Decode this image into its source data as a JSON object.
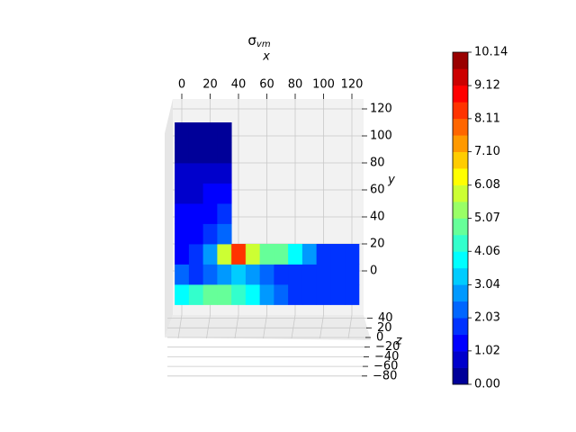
{
  "chart_data": {
    "type": "mesh-contour",
    "title": "σ",
    "title_subscript": "vm",
    "x_label": "x",
    "y_label": "y",
    "z_label": "z",
    "x_edges": [
      -5,
      5,
      15,
      25,
      35,
      45,
      55,
      65,
      75,
      85,
      95,
      105,
      115,
      125
    ],
    "y_edges": [
      -25,
      -10,
      5,
      20,
      35,
      50,
      65,
      80,
      95,
      110
    ],
    "values": [
      [
        4,
        4.5,
        5,
        5,
        4.5,
        4,
        3,
        2.5,
        2,
        2,
        2,
        2,
        2
      ],
      [
        2.5,
        2,
        2.5,
        3,
        3.5,
        3,
        2.5,
        2,
        2,
        2,
        2,
        2,
        2
      ],
      [
        1.5,
        2,
        3,
        6,
        8.5,
        6,
        5,
        5,
        4,
        3,
        2,
        2,
        2
      ],
      [
        1.5,
        1.5,
        2,
        2.5,
        null,
        null,
        null,
        null,
        null,
        null,
        null,
        null,
        null
      ],
      [
        1.5,
        1.5,
        1.5,
        2,
        null,
        null,
        null,
        null,
        null,
        null,
        null,
        null,
        null
      ],
      [
        1,
        1,
        1.5,
        1.5,
        null,
        null,
        null,
        null,
        null,
        null,
        null,
        null,
        null
      ],
      [
        1,
        1,
        1,
        1,
        null,
        null,
        null,
        null,
        null,
        null,
        null,
        null,
        null
      ],
      [
        0.5,
        0.5,
        0.5,
        0.5,
        null,
        null,
        null,
        null,
        null,
        null,
        null,
        null,
        null
      ],
      [
        0.3,
        0.3,
        0.3,
        0.3,
        null,
        null,
        null,
        null,
        null,
        null,
        null,
        null,
        null
      ]
    ],
    "colormap": "jet",
    "levels": 20,
    "clim": [
      0,
      10.14
    ],
    "colorbar_ticks": [
      {
        "value": 0,
        "label": "0.00"
      },
      1.02,
      2.03,
      3.04,
      4.06,
      5.07,
      6.08,
      {
        "value": 7.1,
        "label": "7.10"
      },
      8.11,
      9.12,
      10.14
    ],
    "xlim": [
      0,
      120
    ],
    "xticks": [
      0,
      20,
      40,
      60,
      80,
      100,
      120
    ],
    "ylim": [
      0,
      120
    ],
    "yticks": [
      0,
      20,
      40,
      60,
      80,
      100,
      120
    ],
    "zlim": [
      -80,
      40
    ],
    "zticks": [
      {
        "value": -80,
        "label": "−80"
      },
      {
        "value": -60,
        "label": "−60"
      },
      {
        "value": -40,
        "label": "−40"
      },
      {
        "value": -20,
        "label": "−20"
      },
      0,
      20,
      40
    ],
    "grid": true
  }
}
